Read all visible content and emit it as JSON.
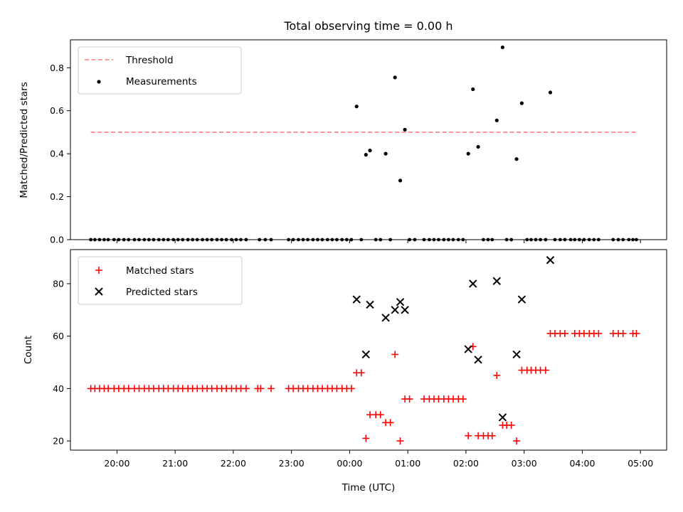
{
  "figure": {
    "title": "Total observing time = 0.00 h"
  },
  "chart_data": [
    {
      "type": "scatter",
      "panel": "top",
      "ylabel": "Matched/Predicted stars",
      "ylim": [
        0,
        0.93
      ],
      "yticks": [
        0.0,
        0.2,
        0.4,
        0.6,
        0.8
      ],
      "ytick_labels": [
        "0.0",
        "0.2",
        "0.4",
        "0.6",
        "0.8"
      ],
      "xlim": [
        19.2,
        5.45
      ],
      "legend_position": "top-left",
      "threshold": {
        "name": "Threshold",
        "value": 0.5,
        "x_start": 19.55,
        "x_end": 4.93,
        "color": "#ff7f7f",
        "style": "dashed"
      },
      "measurements": {
        "name": "Measurements",
        "color": "#000000",
        "nonzero": [
          {
            "x": 0.12,
            "y": 0.62
          },
          {
            "x": 0.28,
            "y": 0.395
          },
          {
            "x": 0.35,
            "y": 0.415
          },
          {
            "x": 0.62,
            "y": 0.4
          },
          {
            "x": 0.78,
            "y": 0.755
          },
          {
            "x": 0.87,
            "y": 0.275
          },
          {
            "x": 0.95,
            "y": 0.512
          },
          {
            "x": 2.04,
            "y": 0.4
          },
          {
            "x": 2.12,
            "y": 0.7
          },
          {
            "x": 2.21,
            "y": 0.432
          },
          {
            "x": 2.53,
            "y": 0.555
          },
          {
            "x": 2.63,
            "y": 0.895
          },
          {
            "x": 2.87,
            "y": 0.375
          },
          {
            "x": 2.96,
            "y": 0.635
          },
          {
            "x": 3.45,
            "y": 0.685
          }
        ],
        "zero_x": [
          19.55,
          19.62,
          19.7,
          19.78,
          19.85,
          19.95,
          20.03,
          20.12,
          20.2,
          20.3,
          20.38,
          20.47,
          20.55,
          20.63,
          20.72,
          20.8,
          20.88,
          20.97,
          21.05,
          21.13,
          21.22,
          21.3,
          21.38,
          21.47,
          21.55,
          21.63,
          21.72,
          21.8,
          21.88,
          21.97,
          22.05,
          22.13,
          22.22,
          22.45,
          22.55,
          22.65,
          22.95,
          23.03,
          23.12,
          23.2,
          23.28,
          23.37,
          23.45,
          23.53,
          23.62,
          23.7,
          23.78,
          23.87,
          23.95,
          24.03,
          0.2,
          0.45,
          0.53,
          0.7,
          1.03,
          1.12,
          1.28,
          1.37,
          1.45,
          1.53,
          1.62,
          1.7,
          1.78,
          1.87,
          1.95,
          2.3,
          2.38,
          2.45,
          2.7,
          2.78,
          3.05,
          3.12,
          3.2,
          3.28,
          3.37,
          3.53,
          3.62,
          3.7,
          3.8,
          3.87,
          3.95,
          4.03,
          4.12,
          4.2,
          4.28,
          4.53,
          4.62,
          4.7,
          4.8,
          4.87,
          4.93
        ]
      }
    },
    {
      "type": "scatter",
      "panel": "bottom",
      "xlabel": "Time (UTC)",
      "ylabel": "Count",
      "ylim": [
        16.5,
        93
      ],
      "yticks": [
        20,
        40,
        60,
        80
      ],
      "ytick_labels": [
        "20",
        "40",
        "60",
        "80"
      ],
      "xlim": [
        19.2,
        5.45
      ],
      "xticks": [
        20,
        21,
        22,
        23,
        0,
        1,
        2,
        3,
        4,
        5
      ],
      "xtick_labels": [
        "20:00",
        "21:00",
        "22:00",
        "23:00",
        "00:00",
        "01:00",
        "02:00",
        "03:00",
        "04:00",
        "05:00"
      ],
      "legend_position": "top-left",
      "series": [
        {
          "name": "Matched stars",
          "marker": "plus",
          "color": "#ff0000",
          "points": [
            [
              19.55,
              40
            ],
            [
              19.62,
              40
            ],
            [
              19.7,
              40
            ],
            [
              19.78,
              40
            ],
            [
              19.85,
              40
            ],
            [
              19.95,
              40
            ],
            [
              20.03,
              40
            ],
            [
              20.12,
              40
            ],
            [
              20.2,
              40
            ],
            [
              20.3,
              40
            ],
            [
              20.38,
              40
            ],
            [
              20.47,
              40
            ],
            [
              20.55,
              40
            ],
            [
              20.63,
              40
            ],
            [
              20.72,
              40
            ],
            [
              20.8,
              40
            ],
            [
              20.88,
              40
            ],
            [
              20.97,
              40
            ],
            [
              21.05,
              40
            ],
            [
              21.13,
              40
            ],
            [
              21.22,
              40
            ],
            [
              21.3,
              40
            ],
            [
              21.38,
              40
            ],
            [
              21.47,
              40
            ],
            [
              21.55,
              40
            ],
            [
              21.63,
              40
            ],
            [
              21.72,
              40
            ],
            [
              21.8,
              40
            ],
            [
              21.88,
              40
            ],
            [
              21.97,
              40
            ],
            [
              22.05,
              40
            ],
            [
              22.13,
              40
            ],
            [
              22.22,
              40
            ],
            [
              22.42,
              40
            ],
            [
              22.47,
              40
            ],
            [
              22.65,
              40
            ],
            [
              22.95,
              40
            ],
            [
              23.03,
              40
            ],
            [
              23.12,
              40
            ],
            [
              23.2,
              40
            ],
            [
              23.28,
              40
            ],
            [
              23.37,
              40
            ],
            [
              23.45,
              40
            ],
            [
              23.53,
              40
            ],
            [
              23.62,
              40
            ],
            [
              23.7,
              40
            ],
            [
              23.78,
              40
            ],
            [
              23.87,
              40
            ],
            [
              23.95,
              40
            ],
            [
              24.03,
              40
            ],
            [
              0.12,
              46
            ],
            [
              0.2,
              46
            ],
            [
              0.28,
              21
            ],
            [
              0.35,
              30
            ],
            [
              0.45,
              30
            ],
            [
              0.53,
              30
            ],
            [
              0.62,
              27
            ],
            [
              0.7,
              27
            ],
            [
              0.78,
              53
            ],
            [
              0.87,
              20
            ],
            [
              0.95,
              36
            ],
            [
              1.03,
              36
            ],
            [
              1.28,
              36
            ],
            [
              1.37,
              36
            ],
            [
              1.45,
              36
            ],
            [
              1.53,
              36
            ],
            [
              1.62,
              36
            ],
            [
              1.7,
              36
            ],
            [
              1.78,
              36
            ],
            [
              1.87,
              36
            ],
            [
              1.95,
              36
            ],
            [
              2.04,
              22
            ],
            [
              2.12,
              56
            ],
            [
              2.21,
              22
            ],
            [
              2.3,
              22
            ],
            [
              2.38,
              22
            ],
            [
              2.45,
              22
            ],
            [
              2.53,
              45
            ],
            [
              2.63,
              26
            ],
            [
              2.7,
              26
            ],
            [
              2.78,
              26
            ],
            [
              2.87,
              20
            ],
            [
              2.96,
              47
            ],
            [
              3.05,
              47
            ],
            [
              3.12,
              47
            ],
            [
              3.2,
              47
            ],
            [
              3.28,
              47
            ],
            [
              3.37,
              47
            ],
            [
              3.45,
              61
            ],
            [
              3.53,
              61
            ],
            [
              3.62,
              61
            ],
            [
              3.7,
              61
            ],
            [
              3.87,
              61
            ],
            [
              3.95,
              61
            ],
            [
              4.03,
              61
            ],
            [
              4.12,
              61
            ],
            [
              4.2,
              61
            ],
            [
              4.28,
              61
            ],
            [
              4.53,
              61
            ],
            [
              4.62,
              61
            ],
            [
              4.7,
              61
            ],
            [
              4.87,
              61
            ],
            [
              4.93,
              61
            ]
          ]
        },
        {
          "name": "Predicted stars",
          "marker": "x",
          "color": "#000000",
          "points": [
            [
              0.12,
              74
            ],
            [
              0.28,
              53
            ],
            [
              0.35,
              72
            ],
            [
              0.62,
              67
            ],
            [
              0.78,
              70
            ],
            [
              0.87,
              73
            ],
            [
              0.95,
              70
            ],
            [
              2.04,
              55
            ],
            [
              2.12,
              80
            ],
            [
              2.21,
              51
            ],
            [
              2.53,
              81
            ],
            [
              2.63,
              29
            ],
            [
              2.87,
              53
            ],
            [
              2.96,
              74
            ],
            [
              3.45,
              89
            ]
          ]
        }
      ]
    }
  ]
}
